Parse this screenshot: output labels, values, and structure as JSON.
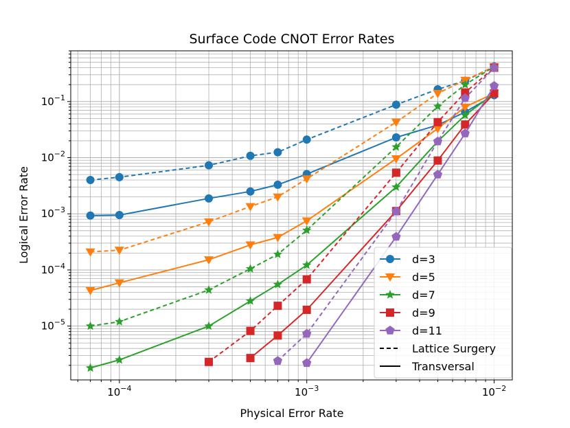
{
  "chart_data": {
    "type": "line",
    "title": "Surface Code CNOT Error Rates",
    "xlabel": "Physical Error Rate",
    "ylabel": "Logical Error Rate",
    "xscale": "log",
    "yscale": "log",
    "xlim": [
      5.5e-05,
      0.0125
    ],
    "ylim": [
      1.1e-06,
      0.8
    ],
    "grid": true,
    "x_ticks": [
      {
        "value": 0.0001,
        "base": "10",
        "exp": "−4"
      },
      {
        "value": 0.001,
        "base": "10",
        "exp": "−3"
      },
      {
        "value": 0.01,
        "base": "10",
        "exp": "−2"
      }
    ],
    "y_ticks": [
      {
        "value": 1e-05,
        "base": "10",
        "exp": "−5"
      },
      {
        "value": 0.0001,
        "base": "10",
        "exp": "−4"
      },
      {
        "value": 0.001,
        "base": "10",
        "exp": "−3"
      },
      {
        "value": 0.01,
        "base": "10",
        "exp": "−2"
      },
      {
        "value": 0.1,
        "base": "10",
        "exp": "−1"
      }
    ],
    "legend_position": "lower-right",
    "series": [
      {
        "name": "d=3",
        "color": "#1f77b4",
        "marker": "circle",
        "lattice_surgery": {
          "x": [
            7e-05,
            0.0001,
            0.0003,
            0.0005,
            0.0007,
            0.001,
            0.003,
            0.005,
            0.007,
            0.01
          ],
          "y": [
            0.004,
            0.0045,
            0.0073,
            0.0108,
            0.0125,
            0.021,
            0.088,
            0.165,
            0.235,
            0.42
          ]
        },
        "transversal": {
          "x": [
            7e-05,
            0.0001,
            0.0003,
            0.0005,
            0.0007,
            0.001,
            0.003,
            0.005,
            0.007,
            0.01
          ],
          "y": [
            0.00093,
            0.00095,
            0.00188,
            0.0025,
            0.0033,
            0.0051,
            0.023,
            0.038,
            0.065,
            0.13
          ]
        }
      },
      {
        "name": "d=5",
        "color": "#ff7f0e",
        "marker": "triangle-down",
        "lattice_surgery": {
          "x": [
            7e-05,
            0.0001,
            0.0003,
            0.0005,
            0.0007,
            0.001,
            0.003,
            0.005,
            0.007,
            0.01
          ],
          "y": [
            0.00021,
            0.000225,
            0.00072,
            0.00135,
            0.002,
            0.0042,
            0.043,
            0.14,
            0.24,
            0.42
          ]
        },
        "transversal": {
          "x": [
            7e-05,
            0.0001,
            0.0003,
            0.0005,
            0.0007,
            0.001,
            0.003,
            0.005,
            0.007,
            0.01
          ],
          "y": [
            4.3e-05,
            5.9e-05,
            0.000152,
            0.00028,
            0.00038,
            0.00075,
            0.0096,
            0.033,
            0.08,
            0.14
          ]
        }
      },
      {
        "name": "d=7",
        "color": "#2ca02c",
        "marker": "star",
        "lattice_surgery": {
          "x": [
            7e-05,
            0.0001,
            0.0003,
            0.0005,
            0.0007,
            0.001,
            0.003,
            0.005,
            0.007,
            0.01
          ],
          "y": [
            1e-05,
            1.2e-05,
            4.4e-05,
            0.000105,
            0.00019,
            0.00051,
            0.0155,
            0.082,
            0.2,
            0.42
          ]
        },
        "transversal": {
          "x": [
            7e-05,
            0.0001,
            0.0003,
            0.0005,
            0.0007,
            0.001,
            0.003,
            0.005,
            0.007,
            0.01
          ],
          "y": [
            1.8e-06,
            2.5e-06,
            1e-05,
            2.8e-05,
            5.5e-05,
            0.000122,
            0.003,
            0.0195,
            0.057,
            0.14
          ]
        }
      },
      {
        "name": "d=9",
        "color": "#d62728",
        "marker": "square",
        "lattice_surgery": {
          "x": [
            0.0003,
            0.0005,
            0.0007,
            0.001,
            0.003,
            0.005,
            0.007,
            0.01
          ],
          "y": [
            2.3e-06,
            8.2e-06,
            2.3e-05,
            6.8e-05,
            0.0054,
            0.043,
            0.145,
            0.4
          ]
        },
        "transversal": {
          "x": [
            0.0005,
            0.0007,
            0.001,
            0.003,
            0.005,
            0.007,
            0.01
          ],
          "y": [
            2.7e-06,
            6.8e-06,
            1.95e-05,
            0.00112,
            0.0089,
            0.039,
            0.14
          ]
        }
      },
      {
        "name": "d=11",
        "color": "#9467bd",
        "marker": "pentagon",
        "lattice_surgery": {
          "x": [
            0.0007,
            0.001,
            0.003,
            0.005,
            0.007,
            0.01
          ],
          "y": [
            2.4e-06,
            7.3e-06,
            0.0011,
            0.0195,
            0.115,
            0.4
          ]
        },
        "transversal": {
          "x": [
            0.001,
            0.003,
            0.005,
            0.007,
            0.01
          ],
          "y": [
            2.2e-06,
            0.00039,
            0.005,
            0.027,
            0.19
          ]
        }
      }
    ],
    "style_legend": [
      {
        "label": "Lattice Surgery",
        "dash": "dashed"
      },
      {
        "label": "Transversal",
        "dash": "solid"
      }
    ]
  }
}
